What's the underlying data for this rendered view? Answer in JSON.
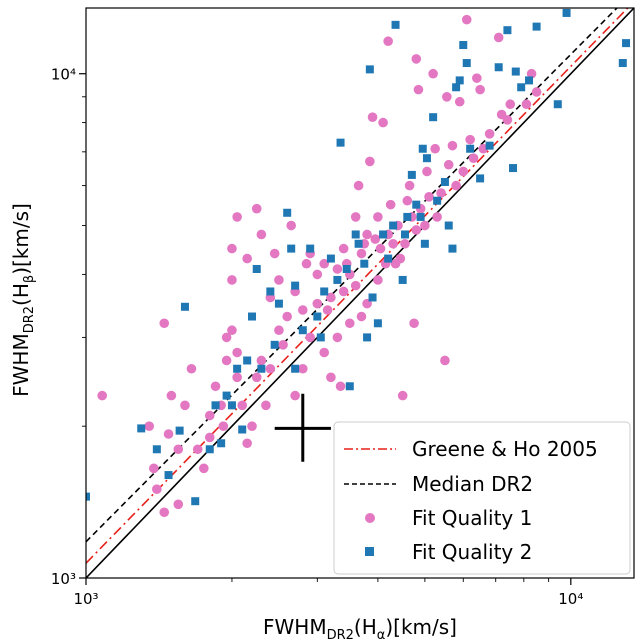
{
  "chart_data": {
    "type": "scatter",
    "xscale": "log",
    "yscale": "log",
    "xlim": [
      1000,
      13500
    ],
    "ylim": [
      1000,
      13500
    ],
    "xticks": [
      {
        "value": 1000,
        "label": "10³"
      },
      {
        "value": 10000,
        "label": "10⁴"
      }
    ],
    "yticks": [
      {
        "value": 1000,
        "label": "10³"
      },
      {
        "value": 10000,
        "label": "10⁴"
      }
    ],
    "xlabel": {
      "base": "FWHM",
      "sub1": "DR2",
      "mid": "(H",
      "sub2": "α",
      "end": ")[km/s]"
    },
    "ylabel": {
      "base": "FWHM",
      "sub1": "DR2",
      "mid": "(H",
      "sub2": "β",
      "end": ")[km/s]"
    },
    "grid": false,
    "legend_position": "lower-right",
    "lines": [
      {
        "name": "",
        "style": "solid",
        "color": "#000000",
        "x": [
          1000,
          13500
        ],
        "y": [
          1000,
          13500
        ]
      },
      {
        "name": "Greene & Ho 2005",
        "style": "dashdot",
        "color": "#e8201a",
        "x": [
          1000,
          13500
        ],
        "y": [
          1070,
          13900
        ]
      },
      {
        "name": "Median DR2",
        "style": "dashed",
        "color": "#000000",
        "x": [
          1000,
          13500
        ],
        "y": [
          1180,
          14600
        ]
      }
    ],
    "error_cross": {
      "x": 2800,
      "y": 1980,
      "x_range": [
        2450,
        3200
      ],
      "y_range": [
        1700,
        2320
      ],
      "color": "#000000"
    },
    "series": [
      {
        "name": "Fit Quality 1",
        "marker": "circle",
        "color": "#e377c2",
        "points": [
          [
            1080,
            2300
          ],
          [
            1350,
            2000
          ],
          [
            1380,
            1650
          ],
          [
            1400,
            1500
          ],
          [
            1450,
            1350
          ],
          [
            1450,
            3200
          ],
          [
            1480,
            1930
          ],
          [
            1500,
            2300
          ],
          [
            1550,
            1800
          ],
          [
            1550,
            1400
          ],
          [
            1600,
            2200
          ],
          [
            1650,
            2600
          ],
          [
            1700,
            1800
          ],
          [
            1750,
            1650
          ],
          [
            1800,
            1900
          ],
          [
            1800,
            2100
          ],
          [
            1850,
            2400
          ],
          [
            1900,
            2200
          ],
          [
            1920,
            2000
          ],
          [
            1950,
            2700
          ],
          [
            1950,
            3000
          ],
          [
            2000,
            3100
          ],
          [
            2000,
            3900
          ],
          [
            2000,
            4500
          ],
          [
            2050,
            2500
          ],
          [
            2050,
            2800
          ],
          [
            2050,
            5200
          ],
          [
            2100,
            2200
          ],
          [
            2150,
            1850
          ],
          [
            2150,
            4300
          ],
          [
            2200,
            2000
          ],
          [
            2250,
            2500
          ],
          [
            2250,
            5400
          ],
          [
            2300,
            2700
          ],
          [
            2300,
            4800
          ],
          [
            2350,
            2200
          ],
          [
            2400,
            2600
          ],
          [
            2400,
            3600
          ],
          [
            2450,
            4400
          ],
          [
            2500,
            3100
          ],
          [
            2500,
            3900
          ],
          [
            2550,
            2900
          ],
          [
            2600,
            3300
          ],
          [
            2650,
            5000
          ],
          [
            2700,
            2300
          ],
          [
            2700,
            3700
          ],
          [
            2800,
            2600
          ],
          [
            2800,
            3400
          ],
          [
            2850,
            4200
          ],
          [
            2900,
            4400
          ],
          [
            2900,
            3000
          ],
          [
            3000,
            3500
          ],
          [
            3000,
            4000
          ],
          [
            3100,
            2800
          ],
          [
            3100,
            4200
          ],
          [
            3150,
            3400
          ],
          [
            3200,
            2500
          ],
          [
            3200,
            3600
          ],
          [
            3300,
            3000
          ],
          [
            3300,
            4100
          ],
          [
            3350,
            2400
          ],
          [
            3400,
            3700
          ],
          [
            3400,
            4500
          ],
          [
            3450,
            4200
          ],
          [
            3500,
            4000
          ],
          [
            3500,
            3200
          ],
          [
            3600,
            3800
          ],
          [
            3600,
            5200
          ],
          [
            3650,
            6000
          ],
          [
            3700,
            4400
          ],
          [
            3700,
            3300
          ],
          [
            3750,
            4600
          ],
          [
            3800,
            3500
          ],
          [
            3800,
            4800
          ],
          [
            3850,
            6700
          ],
          [
            3900,
            8200
          ],
          [
            3950,
            4700
          ],
          [
            4000,
            5200
          ],
          [
            4000,
            3900
          ],
          [
            4050,
            4500
          ],
          [
            4100,
            8000
          ],
          [
            4150,
            4200
          ],
          [
            4200,
            11600
          ],
          [
            4200,
            4800
          ],
          [
            4250,
            5500
          ],
          [
            4300,
            4600
          ],
          [
            4350,
            4200
          ],
          [
            4400,
            5000
          ],
          [
            4450,
            4300
          ],
          [
            4500,
            2300
          ],
          [
            4550,
            4600
          ],
          [
            4600,
            5600
          ],
          [
            4650,
            6000
          ],
          [
            4700,
            5200
          ],
          [
            4750,
            3200
          ],
          [
            4800,
            10700
          ],
          [
            4800,
            4900
          ],
          [
            4850,
            9300
          ],
          [
            4900,
            5400
          ],
          [
            5000,
            5000
          ],
          [
            5050,
            6400
          ],
          [
            5100,
            5700
          ],
          [
            5200,
            10000
          ],
          [
            5250,
            7100
          ],
          [
            5300,
            5200
          ],
          [
            5400,
            5800
          ],
          [
            5500,
            2700
          ],
          [
            5550,
            9000
          ],
          [
            5600,
            6600
          ],
          [
            5700,
            7200
          ],
          [
            5800,
            6000
          ],
          [
            5900,
            8800
          ],
          [
            6000,
            6400
          ],
          [
            6100,
            12800
          ],
          [
            6200,
            7400
          ],
          [
            6300,
            6800
          ],
          [
            6400,
            9800
          ],
          [
            6500,
            9300
          ],
          [
            6600,
            7100
          ],
          [
            6800,
            7600
          ],
          [
            7100,
            11800
          ],
          [
            7200,
            8300
          ],
          [
            7400,
            8100
          ],
          [
            7500,
            8700
          ],
          [
            8100,
            8700
          ],
          [
            8300,
            10000
          ],
          [
            8500,
            9200
          ]
        ]
      },
      {
        "name": "Fit Quality 2",
        "marker": "square",
        "color": "#1f77b4",
        "points": [
          [
            1000,
            1450
          ],
          [
            1300,
            1980
          ],
          [
            1400,
            1800
          ],
          [
            1480,
            1600
          ],
          [
            1560,
            1960
          ],
          [
            1600,
            3450
          ],
          [
            1680,
            1420
          ],
          [
            1800,
            1800
          ],
          [
            1850,
            2200
          ],
          [
            1900,
            1850
          ],
          [
            1950,
            2300
          ],
          [
            2000,
            2200
          ],
          [
            2050,
            2600
          ],
          [
            2100,
            1970
          ],
          [
            2150,
            2700
          ],
          [
            2200,
            3300
          ],
          [
            2250,
            4100
          ],
          [
            2300,
            2600
          ],
          [
            2400,
            3700
          ],
          [
            2450,
            2900
          ],
          [
            2500,
            3500
          ],
          [
            2600,
            5300
          ],
          [
            2650,
            4500
          ],
          [
            2700,
            3800
          ],
          [
            2700,
            2600
          ],
          [
            2800,
            3100
          ],
          [
            2900,
            4500
          ],
          [
            3000,
            3300
          ],
          [
            3050,
            3000
          ],
          [
            3100,
            3700
          ],
          [
            3200,
            4300
          ],
          [
            3300,
            3900
          ],
          [
            3350,
            7300
          ],
          [
            3400,
            14200
          ],
          [
            3450,
            4100
          ],
          [
            3500,
            2400
          ],
          [
            3600,
            4800
          ],
          [
            3650,
            4600
          ],
          [
            3750,
            4200
          ],
          [
            3800,
            3000
          ],
          [
            3850,
            10200
          ],
          [
            3900,
            3600
          ],
          [
            4000,
            3200
          ],
          [
            4100,
            4800
          ],
          [
            4200,
            4300
          ],
          [
            4300,
            5000
          ],
          [
            4350,
            12500
          ],
          [
            4500,
            3900
          ],
          [
            4550,
            4800
          ],
          [
            4600,
            5200
          ],
          [
            4700,
            6300
          ],
          [
            4800,
            5500
          ],
          [
            4900,
            5200
          ],
          [
            4950,
            7100
          ],
          [
            5000,
            4600
          ],
          [
            5050,
            6800
          ],
          [
            5200,
            8200
          ],
          [
            5300,
            5600
          ],
          [
            5500,
            6100
          ],
          [
            5600,
            5000
          ],
          [
            5700,
            4500
          ],
          [
            5800,
            9400
          ],
          [
            5900,
            9700
          ],
          [
            6000,
            11400
          ],
          [
            6100,
            10500
          ],
          [
            6200,
            7100
          ],
          [
            6500,
            6200
          ],
          [
            6800,
            7200
          ],
          [
            7100,
            10300
          ],
          [
            7400,
            12200
          ],
          [
            7600,
            6500
          ],
          [
            7700,
            10100
          ],
          [
            7900,
            9400
          ],
          [
            8200,
            9700
          ],
          [
            8500,
            12400
          ],
          [
            9300,
            15000
          ],
          [
            9400,
            8700
          ],
          [
            9500,
            14000
          ],
          [
            9800,
            13200
          ],
          [
            12800,
            10500
          ],
          [
            13000,
            11500
          ]
        ]
      }
    ]
  }
}
